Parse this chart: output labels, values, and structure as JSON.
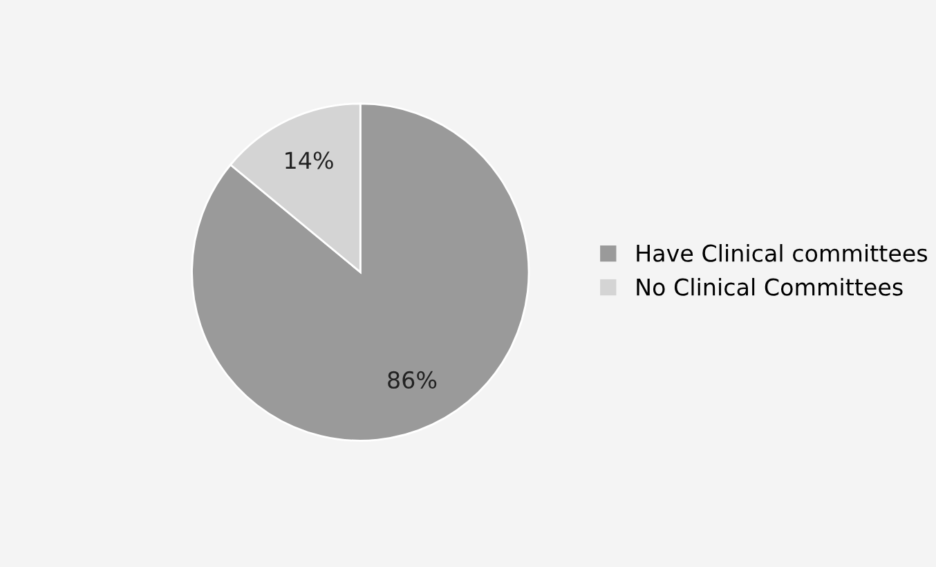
{
  "chart_data": {
    "type": "pie",
    "categories": [
      "Have Clinical committees",
      "No Clinical Committees"
    ],
    "values": [
      86,
      14
    ],
    "colors": [
      "#9a9a9a",
      "#d4d4d4"
    ],
    "value_labels": [
      "86%",
      "14%"
    ],
    "legend": "right"
  }
}
